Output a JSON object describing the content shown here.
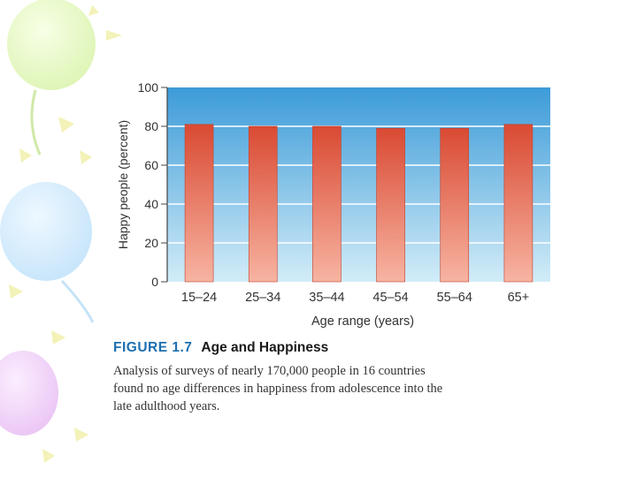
{
  "figure": {
    "number": "FIGURE 1.7",
    "title": "Age and Happiness",
    "caption_lines": [
      "Analysis of surveys of nearly 170,000 people in 16 countries",
      "found no age differences in happiness from adolescence into the",
      "late adulthood years."
    ]
  },
  "chart_data": {
    "type": "bar",
    "categories": [
      "15–24",
      "25–34",
      "35–44",
      "45–54",
      "55–64",
      "65+"
    ],
    "values": [
      81,
      80,
      80,
      79,
      79,
      81
    ],
    "xlabel": "Age range (years)",
    "ylabel": "Happy people (percent)",
    "ylim": [
      0,
      100
    ],
    "yticks": [
      0,
      20,
      40,
      60,
      80,
      100
    ],
    "grid": true,
    "colors": {
      "bar_top": "#d94a33",
      "bar_bottom": "#f7b4a2",
      "background_top": "#3c9bd8",
      "background_bottom": "#d2ecf8",
      "gridline": "#ffffff"
    }
  }
}
